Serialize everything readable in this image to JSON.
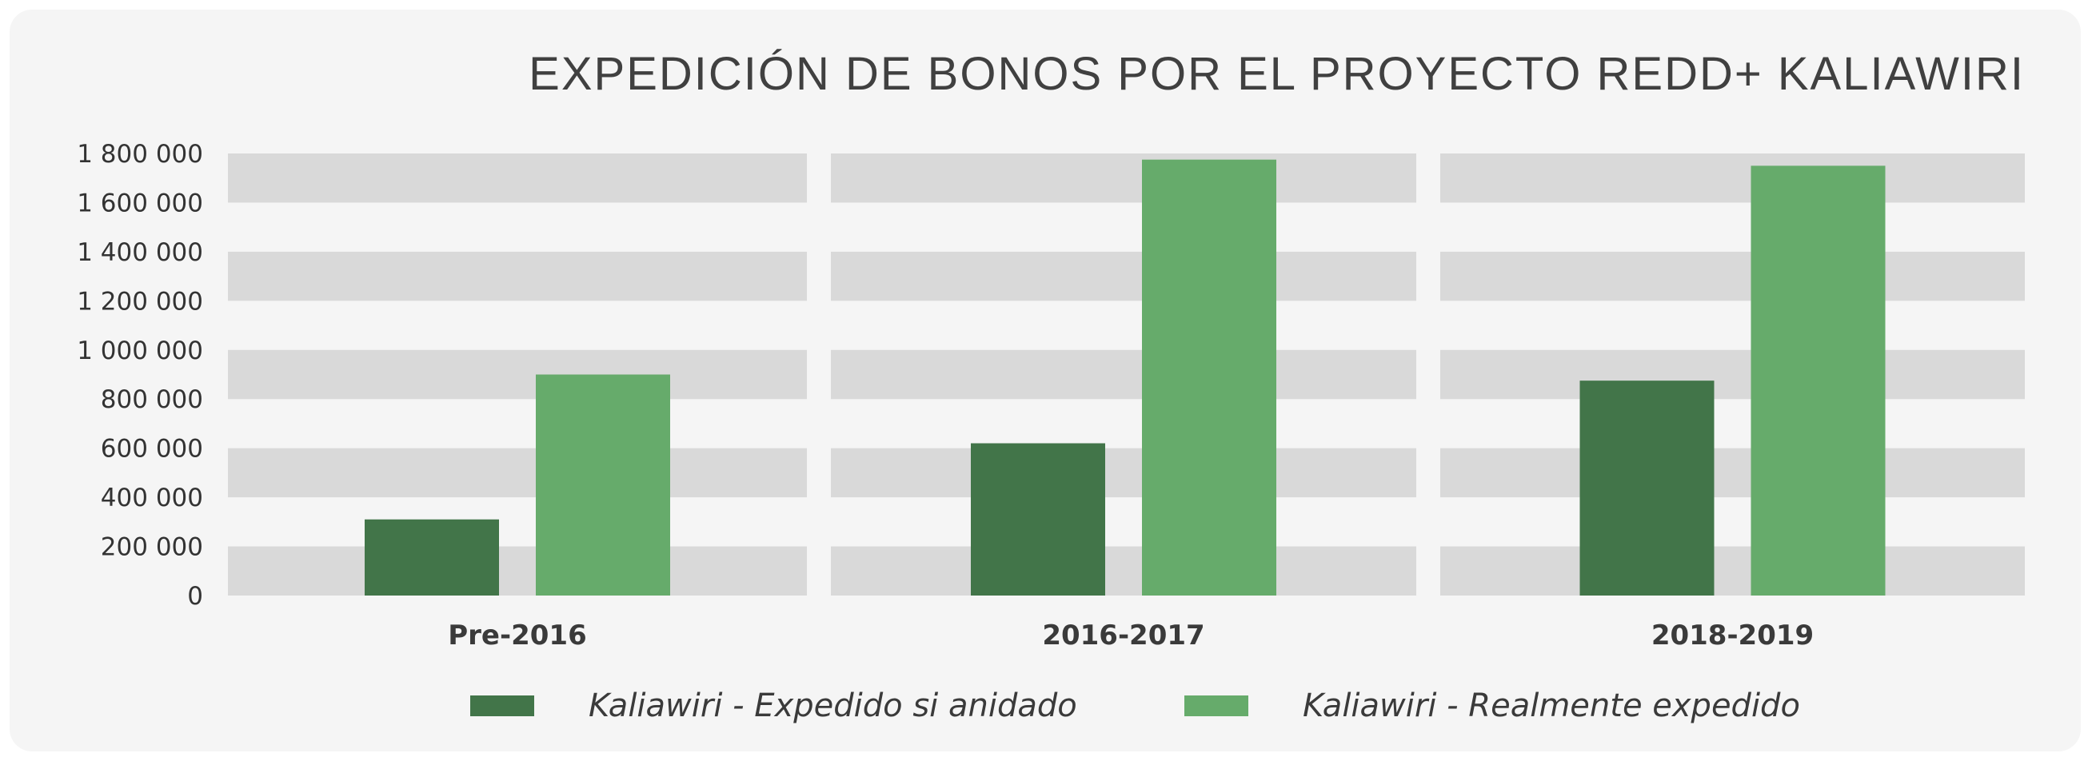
{
  "chart_data": {
    "type": "bar",
    "title": "EXPEDICIÓN DE BONOS POR EL PROYECTO REDD+ KALIAWIRI",
    "categories": [
      "Pre-2016",
      "2016-2017",
      "2018-2019"
    ],
    "series": [
      {
        "name": "Kaliawiri - Expedido si anidado",
        "values": [
          310000,
          620000,
          875000
        ],
        "color": "#427549"
      },
      {
        "name": "Kaliawiri - Realmente expedido",
        "values": [
          900000,
          1775000,
          1750000
        ],
        "color": "#66ab6b"
      }
    ],
    "ylim": [
      0,
      1800000
    ],
    "yticks": [
      0,
      200000,
      400000,
      600000,
      800000,
      1000000,
      1200000,
      1400000,
      1600000,
      1800000
    ],
    "ytick_labels": [
      "0",
      "200 000",
      "400 000",
      "600 000",
      "800 000",
      "1 000 000",
      "1 200 000",
      "1 400 000",
      "1 600 000",
      "1 800 000"
    ],
    "xlabel": "",
    "ylabel": "",
    "grid": "alternating horizontal bands",
    "legend_position": "bottom"
  }
}
